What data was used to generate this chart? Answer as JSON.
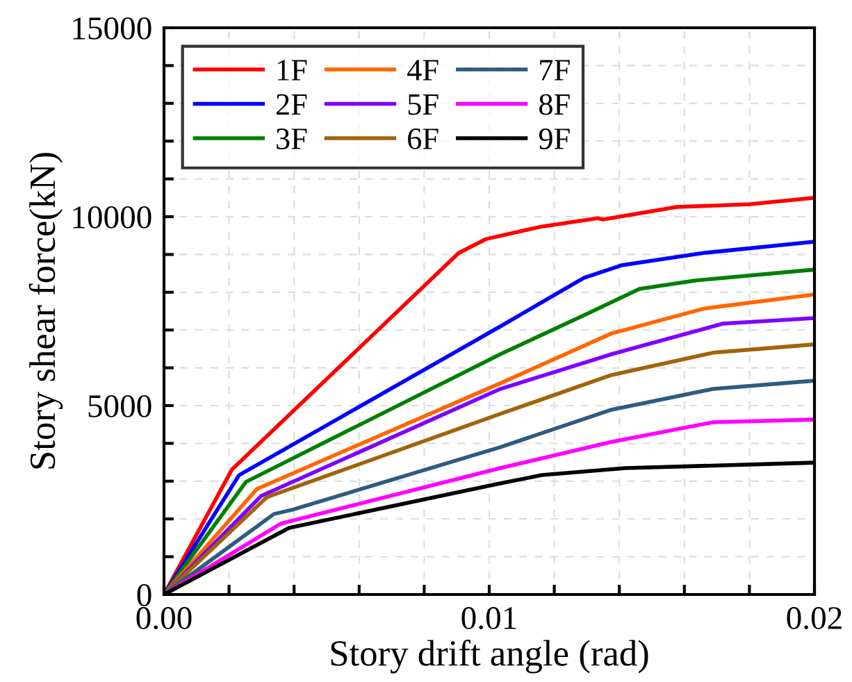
{
  "chart_data": {
    "type": "line",
    "xlabel": "Story drift angle (rad)",
    "ylabel": "Story shear force(kN)",
    "xlim": [
      0,
      0.02
    ],
    "ylim": [
      0,
      15000
    ],
    "xticks": [
      {
        "value": 0,
        "label": "0.00"
      },
      {
        "value": 0.002,
        "label": null
      },
      {
        "value": 0.004,
        "label": null
      },
      {
        "value": 0.006,
        "label": null
      },
      {
        "value": 0.008,
        "label": null
      },
      {
        "value": 0.01,
        "label": "0.01"
      },
      {
        "value": 0.012,
        "label": null
      },
      {
        "value": 0.014,
        "label": null
      },
      {
        "value": 0.016,
        "label": null
      },
      {
        "value": 0.018,
        "label": null
      },
      {
        "value": 0.02,
        "label": "0.02"
      }
    ],
    "yticks": [
      0,
      {
        "value": 1000,
        "label": null
      },
      {
        "value": 2000,
        "label": null
      },
      {
        "value": 3000,
        "label": null
      },
      {
        "value": 4000,
        "label": null
      },
      5000,
      {
        "value": 6000,
        "label": null
      },
      {
        "value": 7000,
        "label": null
      },
      {
        "value": 8000,
        "label": null
      },
      {
        "value": 9000,
        "label": null
      },
      10000,
      {
        "value": 11000,
        "label": null
      },
      {
        "value": 12000,
        "label": null
      },
      {
        "value": 13000,
        "label": null
      },
      {
        "value": 14000,
        "label": null
      },
      15000
    ],
    "grid": true,
    "legend": "top left",
    "line_style": "solid",
    "marker": "none",
    "series": [
      {
        "name": "1F",
        "color": "#ff0000",
        "x": [
          0,
          0.00209,
          0.00906,
          0.00991,
          0.01162,
          0.01333,
          0.0135,
          0.01577,
          0.01803,
          0.02
        ],
        "values": [
          0,
          3310,
          9040,
          9410,
          9740,
          9960,
          9925,
          10256,
          10330,
          10500
        ]
      },
      {
        "name": "2F",
        "color": "#0000ff",
        "x": [
          0,
          0.00231,
          0.01034,
          0.01291,
          0.01406,
          0.01662,
          0.02
        ],
        "values": [
          0,
          3160,
          7095,
          8380,
          8712,
          9043,
          9337
        ]
      },
      {
        "name": "3F",
        "color": "#008000",
        "x": [
          0,
          0.00252,
          0.01034,
          0.01291,
          0.01462,
          0.01632,
          0.02
        ],
        "values": [
          0,
          2980,
          6360,
          7390,
          8090,
          8310,
          8600
        ]
      },
      {
        "name": "4F",
        "color": "#ff6600",
        "x": [
          0,
          0.00286,
          0.01034,
          0.01376,
          0.01662,
          0.02
        ],
        "values": [
          0,
          2795,
          5590,
          6910,
          7570,
          7940
        ]
      },
      {
        "name": "5F",
        "color": "#7f00ff",
        "x": [
          0,
          0.00299,
          0.01034,
          0.01376,
          0.01718,
          0.02
        ],
        "values": [
          0,
          2610,
          5440,
          6360,
          7170,
          7315
        ]
      },
      {
        "name": "6F",
        "color": "#a0640a",
        "x": [
          0,
          0.00316,
          0.01034,
          0.01376,
          0.01688,
          0.02
        ],
        "values": [
          0,
          2575,
          4780,
          5810,
          6400,
          6620
        ]
      },
      {
        "name": "7F",
        "color": "#2e5b80",
        "x": [
          0,
          0.00338,
          0.00393,
          0.01034,
          0.01376,
          0.01688,
          0.02
        ],
        "values": [
          0,
          2130,
          2240,
          3900,
          4890,
          5440,
          5660
        ]
      },
      {
        "name": "8F",
        "color": "#ff00ff",
        "x": [
          0,
          0.00359,
          0.00393,
          0.01034,
          0.01376,
          0.01688,
          0.02
        ],
        "values": [
          0,
          1875,
          1950,
          3345,
          4040,
          4560,
          4630
        ]
      },
      {
        "name": "9F",
        "color": "#000000",
        "x": [
          0,
          0.00385,
          0.01034,
          0.01162,
          0.01419,
          0.02
        ],
        "values": [
          0,
          1765,
          2940,
          3160,
          3345,
          3490
        ]
      }
    ]
  }
}
